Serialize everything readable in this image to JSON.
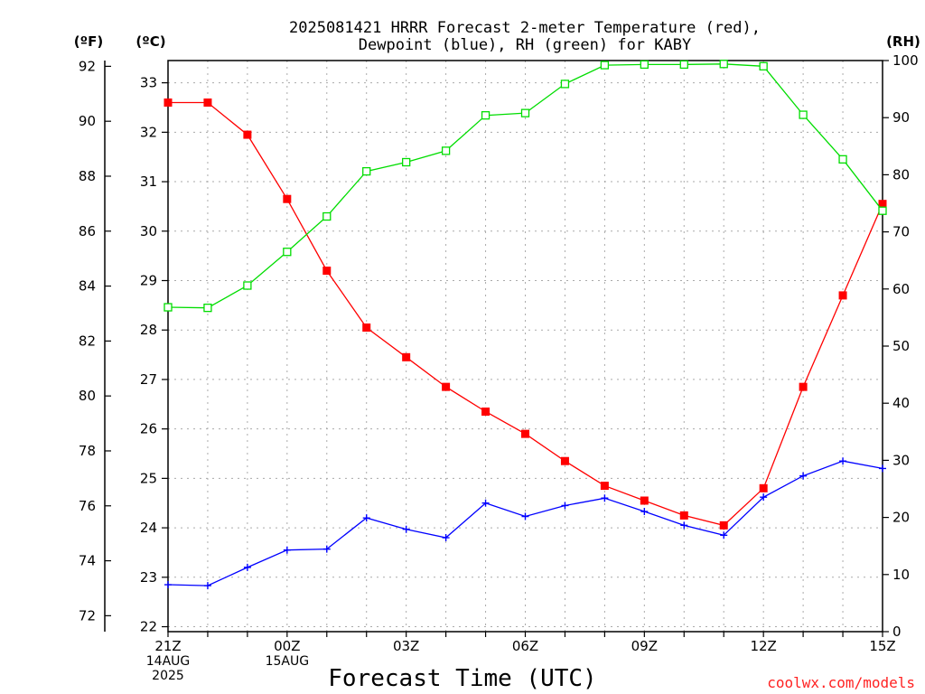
{
  "colors": {
    "temperature": "#ff0000",
    "dewpoint": "#0000ff",
    "rh": "#00dd00",
    "credit": "#ff2222",
    "grid": "#aaaaaa"
  },
  "chart_data": {
    "type": "line",
    "title_line1": "2025081421 HRRR Forecast 2-meter Temperature (red),",
    "title_line2": "Dewpoint (blue), RH (green) for KABY",
    "xlabel": "Forecast Time (UTC)",
    "left_outer_unit": "(ºF)",
    "left_inner_unit": "(ºC)",
    "right_unit": "(RH)",
    "credit": "coolwx.com/models",
    "x_hours": [
      0,
      1,
      2,
      3,
      4,
      5,
      6,
      7,
      8,
      9,
      10,
      11,
      12,
      13,
      14,
      15,
      16,
      17,
      18
    ],
    "x_tick_labels": [
      {
        "hour": 0,
        "label": "21Z",
        "sub1": "14AUG",
        "sub2": "2025"
      },
      {
        "hour": 3,
        "label": "00Z",
        "sub1": "15AUG",
        "sub2": ""
      },
      {
        "hour": 6,
        "label": "03Z",
        "sub1": "",
        "sub2": ""
      },
      {
        "hour": 9,
        "label": "06Z",
        "sub1": "",
        "sub2": ""
      },
      {
        "hour": 12,
        "label": "09Z",
        "sub1": "",
        "sub2": ""
      },
      {
        "hour": 15,
        "label": "12Z",
        "sub1": "",
        "sub2": ""
      },
      {
        "hour": 18,
        "label": "15Z",
        "sub1": "",
        "sub2": ""
      }
    ],
    "xlim": [
      0,
      18
    ],
    "ylim_celsius": [
      21.9,
      33.45
    ],
    "fahrenheit_ticks": [
      72,
      74,
      76,
      78,
      80,
      82,
      84,
      86,
      88,
      90,
      92
    ],
    "celsius_ticks": [
      22,
      23,
      24,
      25,
      26,
      27,
      28,
      29,
      30,
      31,
      32,
      33
    ],
    "ylim_rh": [
      0,
      100
    ],
    "rh_ticks": [
      0,
      10,
      20,
      30,
      40,
      50,
      60,
      70,
      80,
      90,
      100
    ],
    "grid": true,
    "series": [
      {
        "name": "Temperature",
        "axis": "celsius",
        "marker": "filled-square",
        "values": [
          32.6,
          32.6,
          31.95,
          30.65,
          29.2,
          28.05,
          27.45,
          26.85,
          26.35,
          25.9,
          25.35,
          24.85,
          24.55,
          24.25,
          24.05,
          24.8,
          26.85,
          28.7,
          30.55
        ]
      },
      {
        "name": "Dewpoint",
        "axis": "celsius",
        "marker": "plus",
        "values": [
          22.85,
          22.83,
          23.2,
          23.55,
          23.57,
          24.2,
          23.97,
          23.8,
          24.5,
          24.23,
          24.45,
          24.6,
          24.33,
          24.05,
          23.85,
          24.62,
          25.05,
          25.35,
          25.2
        ]
      },
      {
        "name": "RH",
        "axis": "rh",
        "marker": "open-square",
        "values": [
          56.8,
          56.7,
          60.6,
          66.5,
          72.7,
          80.6,
          82.2,
          84.2,
          90.4,
          90.8,
          95.9,
          99.2,
          99.3,
          99.3,
          99.4,
          99.0,
          90.5,
          82.7,
          73.7
        ]
      }
    ]
  }
}
